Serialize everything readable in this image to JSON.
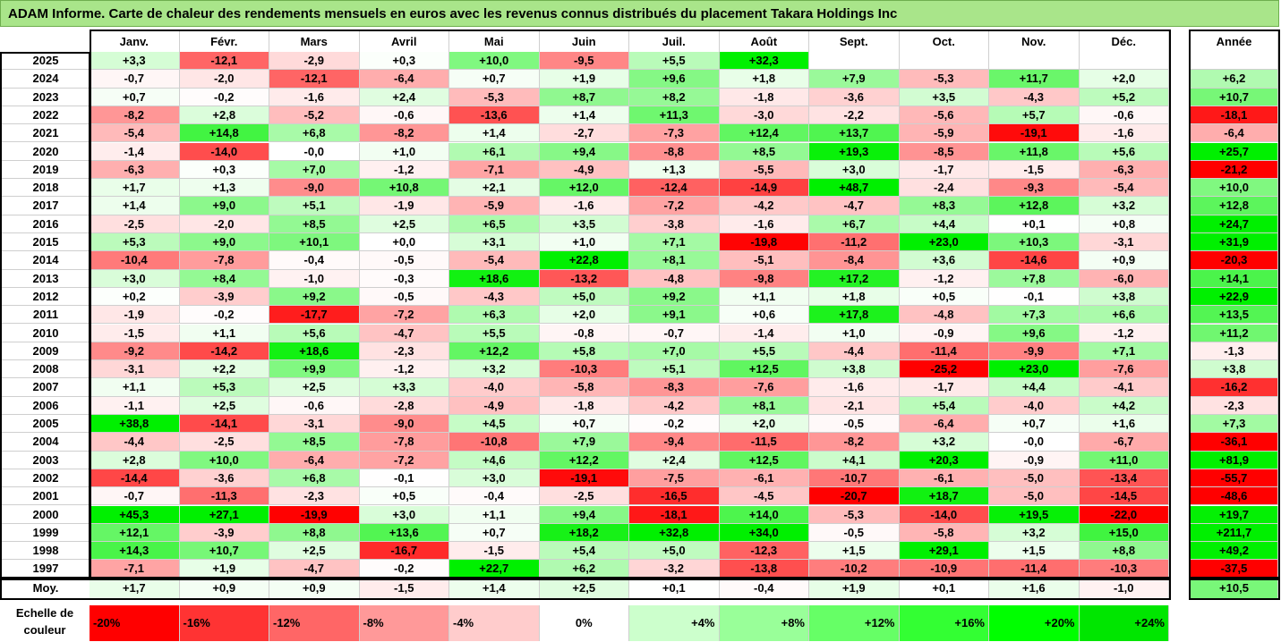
{
  "title": "ADAM Informe. Carte de chaleur des rendements mensuels en euros avec les revenus connus distribués du placement Takara Holdings Inc",
  "chart_data": {
    "type": "heatmap",
    "title": "ADAM Informe. Carte de chaleur des rendements mensuels en euros avec les revenus connus distribués du placement Takara Holdings Inc",
    "months": [
      "Janv.",
      "Févr.",
      "Mars",
      "Avril",
      "Mai",
      "Juin",
      "Juil.",
      "Août",
      "Sept.",
      "Oct.",
      "Nov.",
      "Déc."
    ],
    "year_header": "Année",
    "rows": [
      {
        "year": "2025",
        "m": [
          "+3,3",
          "-12,1",
          "-2,9",
          "+0,3",
          "+10,0",
          "-9,5",
          "+5,5",
          "+32,3",
          "",
          "",
          "",
          ""
        ],
        "annual": ""
      },
      {
        "year": "2024",
        "m": [
          "-0,7",
          "-2,0",
          "-12,1",
          "-6,4",
          "+0,7",
          "+1,9",
          "+9,6",
          "+1,8",
          "+7,9",
          "-5,3",
          "+11,7",
          "+2,0"
        ],
        "annual": "+6,2"
      },
      {
        "year": "2023",
        "m": [
          "+0,7",
          "-0,2",
          "-1,6",
          "+2,4",
          "-5,3",
          "+8,7",
          "+8,2",
          "-1,8",
          "-3,6",
          "+3,5",
          "-4,3",
          "+5,2"
        ],
        "annual": "+10,7"
      },
      {
        "year": "2022",
        "m": [
          "-8,2",
          "+2,8",
          "-5,2",
          "-0,6",
          "-13,6",
          "+1,4",
          "+11,3",
          "-3,0",
          "-2,2",
          "-5,6",
          "+5,7",
          "-0,6"
        ],
        "annual": "-18,1"
      },
      {
        "year": "2021",
        "m": [
          "-5,4",
          "+14,8",
          "+6,8",
          "-8,2",
          "+1,4",
          "-2,7",
          "-7,3",
          "+12,4",
          "+13,7",
          "-5,9",
          "-19,1",
          "-1,6"
        ],
        "annual": "-6,4"
      },
      {
        "year": "2020",
        "m": [
          "-1,4",
          "-14,0",
          "-0,0",
          "+1,0",
          "+6,1",
          "+9,4",
          "-8,8",
          "+8,5",
          "+19,3",
          "-8,5",
          "+11,8",
          "+5,6"
        ],
        "annual": "+25,7"
      },
      {
        "year": "2019",
        "m": [
          "-6,3",
          "+0,3",
          "+7,0",
          "-1,2",
          "-7,1",
          "-4,9",
          "+1,3",
          "-5,5",
          "+3,0",
          "-1,7",
          "-1,5",
          "-6,3"
        ],
        "annual": "-21,2"
      },
      {
        "year": "2018",
        "m": [
          "+1,7",
          "+1,3",
          "-9,0",
          "+10,8",
          "+2,1",
          "+12,0",
          "-12,4",
          "-14,9",
          "+48,7",
          "-2,4",
          "-9,3",
          "-5,4"
        ],
        "annual": "+10,0"
      },
      {
        "year": "2017",
        "m": [
          "+1,4",
          "+9,0",
          "+5,1",
          "-1,9",
          "-5,9",
          "-1,6",
          "-7,2",
          "-4,2",
          "-4,7",
          "+8,3",
          "+12,8",
          "+3,2"
        ],
        "annual": "+12,8"
      },
      {
        "year": "2016",
        "m": [
          "-2,5",
          "-2,0",
          "+8,5",
          "+2,5",
          "+6,5",
          "+3,5",
          "-3,8",
          "-1,6",
          "+6,7",
          "+4,4",
          "+0,1",
          "+0,8"
        ],
        "annual": "+24,7"
      },
      {
        "year": "2015",
        "m": [
          "+5,3",
          "+9,0",
          "+10,1",
          "+0,0",
          "+3,1",
          "+1,0",
          "+7,1",
          "-19,8",
          "-11,2",
          "+23,0",
          "+10,3",
          "-3,1"
        ],
        "annual": "+31,9"
      },
      {
        "year": "2014",
        "m": [
          "-10,4",
          "-7,8",
          "-0,4",
          "-0,5",
          "-5,4",
          "+22,8",
          "+8,1",
          "-5,1",
          "-8,4",
          "+3,6",
          "-14,6",
          "+0,9"
        ],
        "annual": "-20,3"
      },
      {
        "year": "2013",
        "m": [
          "+3,0",
          "+8,4",
          "-1,0",
          "-0,3",
          "+18,6",
          "-13,2",
          "-4,8",
          "-9,8",
          "+17,2",
          "-1,2",
          "+7,8",
          "-6,0"
        ],
        "annual": "+14,1"
      },
      {
        "year": "2012",
        "m": [
          "+0,2",
          "-3,9",
          "+9,2",
          "-0,5",
          "-4,3",
          "+5,0",
          "+9,2",
          "+1,1",
          "+1,8",
          "+0,5",
          "-0,1",
          "+3,8"
        ],
        "annual": "+22,9"
      },
      {
        "year": "2011",
        "m": [
          "-1,9",
          "-0,2",
          "-17,7",
          "-7,2",
          "+6,3",
          "+2,0",
          "+9,1",
          "+0,6",
          "+17,8",
          "-4,8",
          "+7,3",
          "+6,6"
        ],
        "annual": "+13,5"
      },
      {
        "year": "2010",
        "m": [
          "-1,5",
          "+1,1",
          "+5,6",
          "-4,7",
          "+5,5",
          "-0,8",
          "-0,7",
          "-1,4",
          "+1,0",
          "-0,9",
          "+9,6",
          "-1,2"
        ],
        "annual": "+11,2"
      },
      {
        "year": "2009",
        "m": [
          "-9,2",
          "-14,2",
          "+18,6",
          "-2,3",
          "+12,2",
          "+5,8",
          "+7,0",
          "+5,5",
          "-4,4",
          "-11,4",
          "-9,9",
          "+7,1"
        ],
        "annual": "-1,3"
      },
      {
        "year": "2008",
        "m": [
          "-3,1",
          "+2,2",
          "+9,9",
          "-1,2",
          "+3,2",
          "-10,3",
          "+5,1",
          "+12,5",
          "+3,8",
          "-25,2",
          "+23,0",
          "-7,6"
        ],
        "annual": "+3,8"
      },
      {
        "year": "2007",
        "m": [
          "+1,1",
          "+5,3",
          "+2,5",
          "+3,3",
          "-4,0",
          "-5,8",
          "-8,3",
          "-7,6",
          "-1,6",
          "-1,7",
          "+4,4",
          "-4,1"
        ],
        "annual": "-16,2"
      },
      {
        "year": "2006",
        "m": [
          "-1,1",
          "+2,5",
          "-0,6",
          "-2,8",
          "-4,9",
          "-1,8",
          "-4,2",
          "+8,1",
          "-2,1",
          "+5,4",
          "-4,0",
          "+4,2"
        ],
        "annual": "-2,3"
      },
      {
        "year": "2005",
        "m": [
          "+38,8",
          "-14,1",
          "-3,1",
          "-9,0",
          "+4,5",
          "+0,7",
          "-0,2",
          "+2,0",
          "-0,5",
          "-6,4",
          "+0,7",
          "+1,6"
        ],
        "annual": "+7,3"
      },
      {
        "year": "2004",
        "m": [
          "-4,4",
          "-2,5",
          "+8,5",
          "-7,8",
          "-10,8",
          "+7,9",
          "-9,4",
          "-11,5",
          "-8,2",
          "+3,2",
          "-0,0",
          "-6,7"
        ],
        "annual": "-36,1"
      },
      {
        "year": "2003",
        "m": [
          "+2,8",
          "+10,0",
          "-6,4",
          "-7,2",
          "+4,6",
          "+12,2",
          "+2,4",
          "+12,5",
          "+4,1",
          "+20,3",
          "-0,9",
          "+11,0"
        ],
        "annual": "+81,9"
      },
      {
        "year": "2002",
        "m": [
          "-14,4",
          "-3,6",
          "+6,8",
          "-0,1",
          "+3,0",
          "-19,1",
          "-7,5",
          "-6,1",
          "-10,7",
          "-6,1",
          "-5,0",
          "-13,4"
        ],
        "annual": "-55,7"
      },
      {
        "year": "2001",
        "m": [
          "-0,7",
          "-11,3",
          "-2,3",
          "+0,5",
          "-0,4",
          "-2,5",
          "-16,5",
          "-4,5",
          "-20,7",
          "+18,7",
          "-5,0",
          "-14,5"
        ],
        "annual": "-48,6"
      },
      {
        "year": "2000",
        "m": [
          "+45,3",
          "+27,1",
          "-19,9",
          "+3,0",
          "+1,1",
          "+9,4",
          "-18,1",
          "+14,0",
          "-5,3",
          "-14,0",
          "+19,5",
          "-22,0"
        ],
        "annual": "+19,7"
      },
      {
        "year": "1999",
        "m": [
          "+12,1",
          "-3,9",
          "+8,8",
          "+13,6",
          "+0,7",
          "+18,2",
          "+32,8",
          "+34,0",
          "-0,5",
          "-5,8",
          "+3,2",
          "+15,0"
        ],
        "annual": "+211,7"
      },
      {
        "year": "1998",
        "m": [
          "+14,3",
          "+10,7",
          "+2,5",
          "-16,7",
          "-1,5",
          "+5,4",
          "+5,0",
          "-12,3",
          "+1,5",
          "+29,1",
          "+1,5",
          "+8,8"
        ],
        "annual": "+49,2"
      },
      {
        "year": "1997",
        "m": [
          "-7,1",
          "+1,9",
          "-4,7",
          "-0,2",
          "+22,7",
          "+6,2",
          "-3,2",
          "-13,8",
          "-10,2",
          "-10,9",
          "-11,4",
          "-10,3"
        ],
        "annual": "-37,5"
      }
    ],
    "average": {
      "label": "Moy.",
      "m": [
        "+1,7",
        "+0,9",
        "+0,9",
        "-1,5",
        "+1,4",
        "+2,5",
        "+0,1",
        "-0,4",
        "+1,9",
        "+0,1",
        "+1,6",
        "-1,0"
      ],
      "annual": "+10,5"
    },
    "scale": {
      "label": "Echelle de couleur",
      "steps": [
        "-20%",
        "-16%",
        "-12%",
        "-8%",
        "-4%",
        "0%",
        "+4%",
        "+8%",
        "+12%",
        "+16%",
        "+20%",
        "+24%"
      ],
      "colors": [
        "#ff0000",
        "#ff3333",
        "#ff6666",
        "#ff9999",
        "#ffcccc",
        "#ffffff",
        "#ccffcc",
        "#99ff99",
        "#66ff66",
        "#33ff33",
        "#00ff00",
        "#00e600"
      ]
    },
    "colors": {
      "negative": "#ff0000",
      "neutral": "#ffffff",
      "positive": "#00ff00"
    }
  }
}
